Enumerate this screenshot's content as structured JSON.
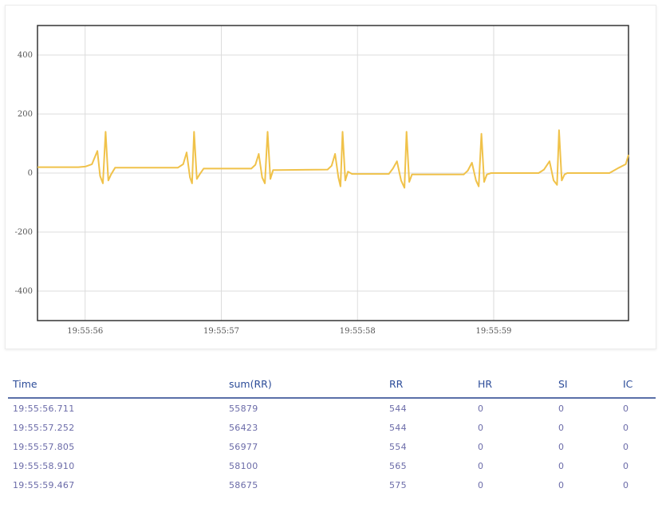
{
  "chart_data": {
    "type": "line",
    "title": "",
    "xlabel": "",
    "ylabel": "",
    "ylim": [
      -500,
      500
    ],
    "yticks": [
      400,
      200,
      0,
      -200,
      -400
    ],
    "xlim": [
      "19:55:55.650",
      "19:55:59.990"
    ],
    "xticks": [
      "19:55:56",
      "19:55:57",
      "19:55:58",
      "19:55:59"
    ],
    "grid": true,
    "line_color": "#f0c24a",
    "series": [
      {
        "name": "",
        "x": [
          55.65,
          55.95,
          56.0,
          56.05,
          56.09,
          56.11,
          56.13,
          56.15,
          56.17,
          56.19,
          56.22,
          56.68,
          56.72,
          56.745,
          56.77,
          56.785,
          56.8,
          56.82,
          56.84,
          56.87,
          57.22,
          57.25,
          57.275,
          57.3,
          57.32,
          57.34,
          57.36,
          57.38,
          57.41,
          57.78,
          57.81,
          57.835,
          57.86,
          57.875,
          57.89,
          57.91,
          57.93,
          57.96,
          58.23,
          58.26,
          58.29,
          58.32,
          58.345,
          58.36,
          58.38,
          58.4,
          58.43,
          58.78,
          58.81,
          58.84,
          58.87,
          58.89,
          58.91,
          58.93,
          58.95,
          58.98,
          59.33,
          59.37,
          59.41,
          59.44,
          59.465,
          59.48,
          59.5,
          59.52,
          59.54,
          59.57,
          59.85,
          59.92,
          59.97,
          59.99
        ],
        "y": [
          20,
          20,
          22,
          30,
          75,
          -10,
          -35,
          140,
          -25,
          -5,
          18,
          18,
          30,
          70,
          -15,
          -35,
          140,
          -20,
          -5,
          15,
          15,
          28,
          65,
          -15,
          -35,
          140,
          -20,
          10,
          10,
          12,
          25,
          65,
          -15,
          -45,
          140,
          -25,
          5,
          -3,
          -3,
          15,
          40,
          -25,
          -50,
          140,
          -30,
          -5,
          -5,
          -5,
          8,
          35,
          -25,
          -45,
          133,
          -30,
          -5,
          0,
          0,
          12,
          40,
          -25,
          -40,
          145,
          -25,
          -5,
          0,
          0,
          0,
          18,
          30,
          62
        ]
      }
    ]
  },
  "table": {
    "headers": [
      "Time",
      "sum(RR)",
      "RR",
      "HR",
      "SI",
      "IC"
    ],
    "rows": [
      [
        "19:55:56.711",
        "55879",
        "544",
        "0",
        "0",
        "0"
      ],
      [
        "19:55:57.252",
        "56423",
        "544",
        "0",
        "0",
        "0"
      ],
      [
        "19:55:57.805",
        "56977",
        "554",
        "0",
        "0",
        "0"
      ],
      [
        "19:55:58.910",
        "58100",
        "565",
        "0",
        "0",
        "0"
      ],
      [
        "19:55:59.467",
        "58675",
        "575",
        "0",
        "0",
        "0"
      ]
    ]
  }
}
